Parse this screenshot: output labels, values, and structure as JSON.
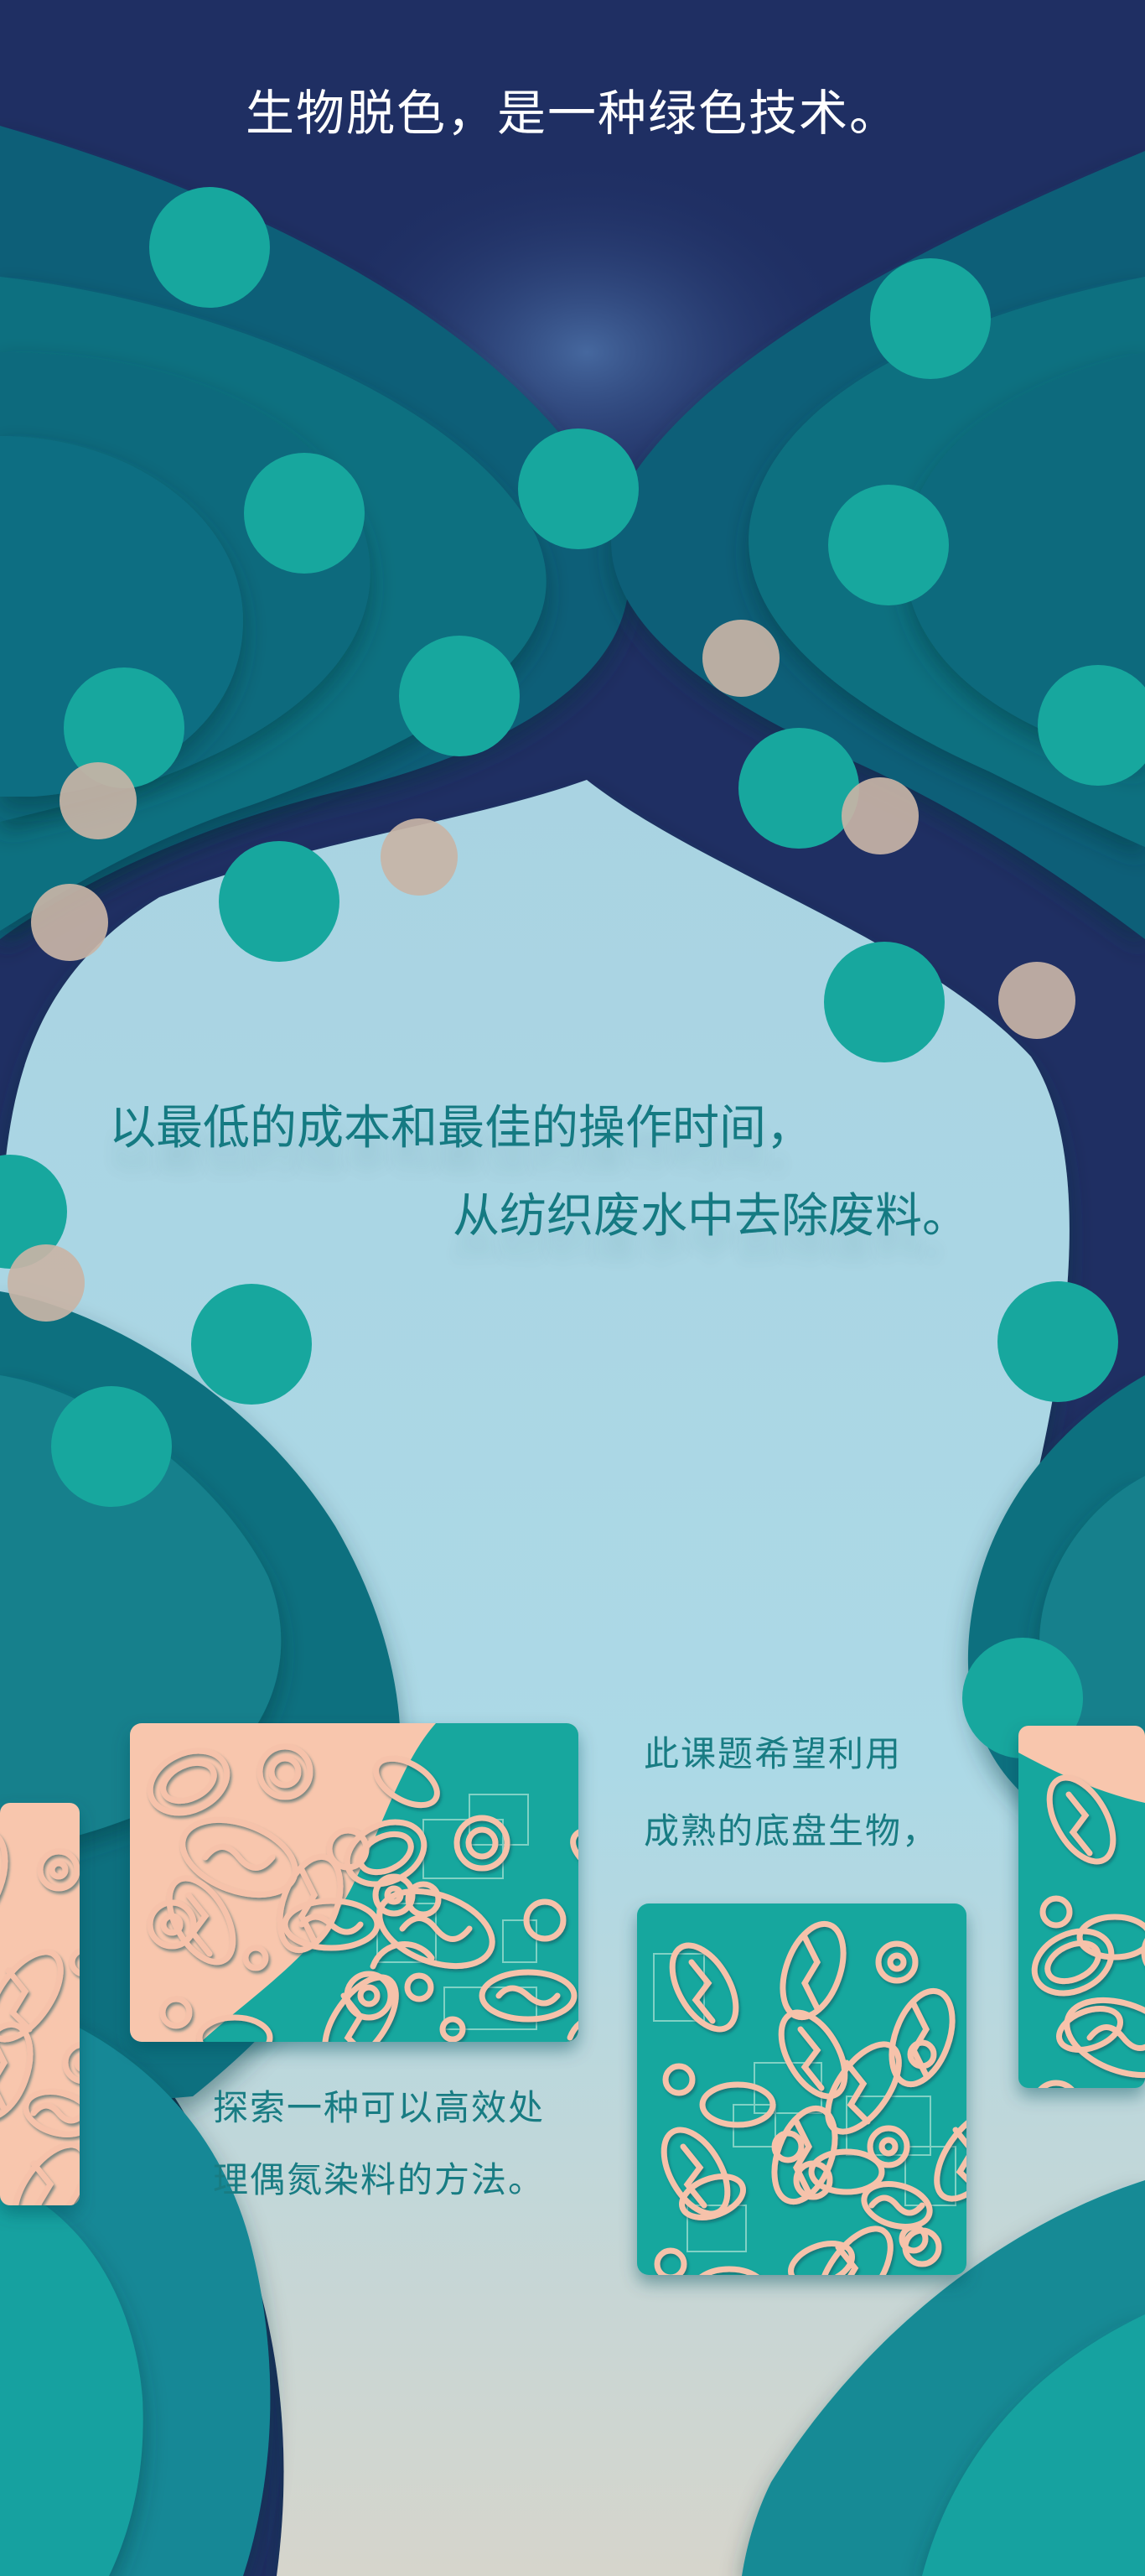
{
  "headline": "生物脱色，是一种绿色技术。",
  "intro": {
    "line1": "以最低的成本和最佳的操作时间，",
    "line2": "从纺织废水中去除废料。"
  },
  "research_note": {
    "line1": "此课题希望利用",
    "line2": "成熟的底盘生物，"
  },
  "method_note": {
    "line1": "探索一种可以高效处",
    "line2": "理偶氮染料的方法。"
  },
  "colors": {
    "navy": "#1f2f63",
    "deep_teal": "#0e6a7d",
    "teal": "#128896",
    "bubble_teal": "#17a79e",
    "bubble_beige": "#c8b4a6",
    "light_blue": "#acd9e6",
    "peach": "#f8c6ad",
    "text_teal": "#157a82"
  },
  "illustrations": [
    "microbe-pattern-card-left-edge",
    "microbe-pattern-card-peach-teal",
    "microbe-pattern-card-teal",
    "microbe-pattern-card-right-edge"
  ]
}
